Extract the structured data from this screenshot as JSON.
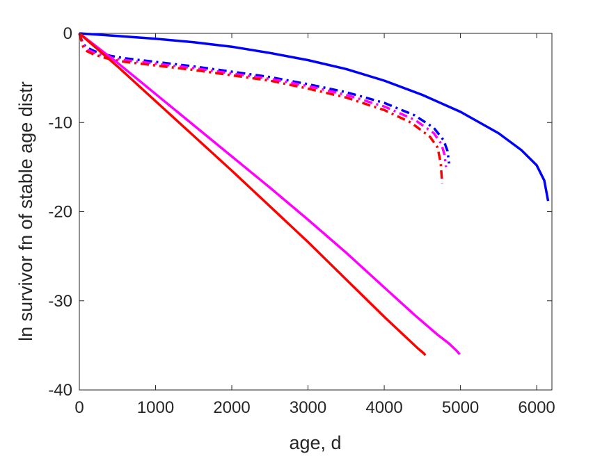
{
  "chart_data": {
    "type": "line",
    "title": "",
    "xlabel": "age, d",
    "ylabel": "ln survivor fn of stable age distr",
    "xlim": [
      0,
      6200
    ],
    "ylim": [
      -40,
      0
    ],
    "xticks": [
      0,
      1000,
      2000,
      3000,
      4000,
      5000,
      6000
    ],
    "yticks": [
      0,
      -10,
      -20,
      -30,
      -40
    ],
    "grid": false,
    "legend": null,
    "series": [
      {
        "color": "#0000ff",
        "style": "solid",
        "x": [
          0,
          500,
          1000,
          1500,
          2000,
          2500,
          3000,
          3500,
          4000,
          4500,
          5000,
          5500,
          5800,
          6000,
          6100,
          6150
        ],
        "y": [
          0,
          -0.3,
          -0.6,
          -1.0,
          -1.5,
          -2.2,
          -3.0,
          -4.0,
          -5.3,
          -6.9,
          -8.8,
          -11.2,
          -13.1,
          -14.8,
          -16.5,
          -18.8
        ]
      },
      {
        "color": "#0000ff",
        "style": "dashdot",
        "x": [
          0,
          50,
          100,
          200,
          400,
          600,
          1000,
          1500,
          2000,
          2500,
          3000,
          3500,
          4000,
          4400,
          4650,
          4780,
          4830,
          4850
        ],
        "y": [
          0,
          -1.2,
          -1.6,
          -2.0,
          -2.5,
          -2.8,
          -3.2,
          -3.7,
          -4.3,
          -4.9,
          -5.7,
          -6.6,
          -7.8,
          -9.2,
          -10.6,
          -12.0,
          -13.2,
          -14.6
        ]
      },
      {
        "color": "#ff00ff",
        "style": "dashdot",
        "x": [
          0,
          50,
          100,
          200,
          400,
          600,
          1000,
          1500,
          2000,
          2500,
          3000,
          3500,
          4000,
          4400,
          4650,
          4750,
          4790,
          4810
        ],
        "y": [
          0,
          -1.3,
          -1.8,
          -2.2,
          -2.7,
          -3.0,
          -3.4,
          -3.9,
          -4.5,
          -5.1,
          -5.9,
          -6.9,
          -8.2,
          -9.7,
          -11.2,
          -12.4,
          -13.6,
          -15.0
        ]
      },
      {
        "color": "#ff0000",
        "style": "dashdot",
        "x": [
          0,
          50,
          100,
          200,
          400,
          600,
          1000,
          1500,
          2000,
          2500,
          3000,
          3500,
          4000,
          4350,
          4600,
          4700,
          4740,
          4760
        ],
        "y": [
          0,
          -1.5,
          -2.0,
          -2.4,
          -2.9,
          -3.2,
          -3.6,
          -4.1,
          -4.7,
          -5.3,
          -6.2,
          -7.2,
          -8.6,
          -10.0,
          -11.6,
          -12.8,
          -14.5,
          -16.8
        ]
      },
      {
        "color": "#ff00ff",
        "style": "solid",
        "x": [
          0,
          500,
          1000,
          1500,
          2000,
          2500,
          3000,
          3500,
          4000,
          4400,
          4700,
          4850,
          4950,
          4990
        ],
        "y": [
          0,
          -3.3,
          -6.8,
          -10.3,
          -13.8,
          -17.3,
          -20.9,
          -24.6,
          -28.5,
          -31.6,
          -33.8,
          -34.8,
          -35.6,
          -36.0
        ]
      },
      {
        "color": "#ff0000",
        "style": "solid",
        "x": [
          0,
          500,
          1000,
          1500,
          2000,
          2500,
          3000,
          3500,
          4000,
          4300,
          4450,
          4520,
          4540
        ],
        "y": [
          0,
          -3.7,
          -7.6,
          -11.5,
          -15.4,
          -19.4,
          -23.4,
          -27.6,
          -31.8,
          -34.2,
          -35.4,
          -35.9,
          -36.1
        ]
      }
    ]
  }
}
